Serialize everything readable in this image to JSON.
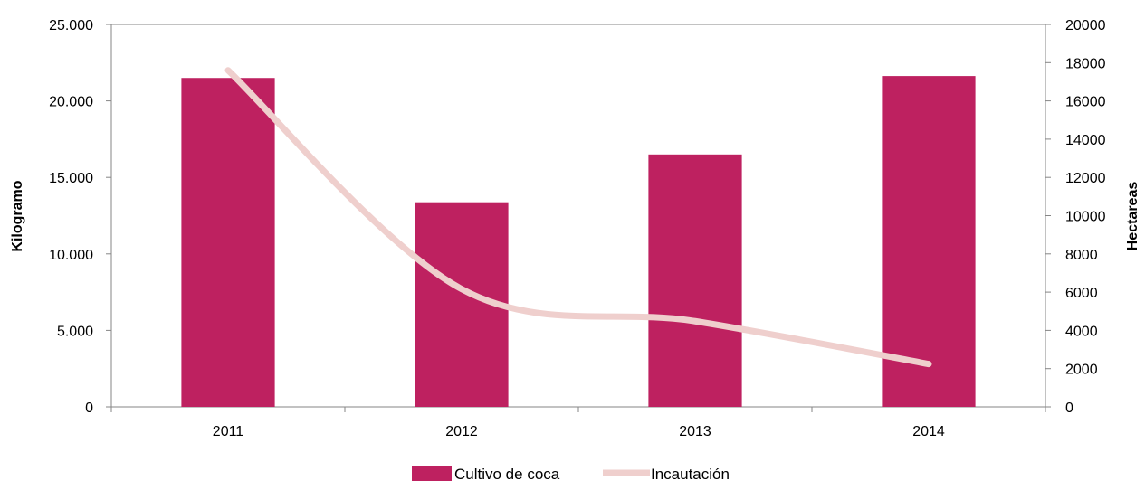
{
  "chart_data": {
    "type": "bar",
    "title": "",
    "categories": [
      "2011",
      "2012",
      "2013",
      "2014"
    ],
    "series": [
      {
        "name": "Cultivo de coca",
        "kind": "bar",
        "axis": "right",
        "values": [
          17200,
          10700,
          13200,
          17300
        ],
        "color": "#BE2160"
      },
      {
        "name": "Incautación",
        "kind": "line",
        "axis": "left",
        "values": [
          22000,
          7700,
          5600,
          2800
        ],
        "color": "#EFCFCD"
      }
    ],
    "left_axis": {
      "label": "Kilogramo",
      "range": [
        0,
        25000
      ],
      "ticks": [
        0,
        5000,
        10000,
        15000,
        20000,
        25000
      ],
      "tick_labels": [
        "0",
        "5.000",
        "10.000",
        "15.000",
        "20.000",
        "25.000"
      ]
    },
    "right_axis": {
      "label": "Hectareas",
      "range": [
        0,
        20000
      ],
      "ticks": [
        0,
        2000,
        4000,
        6000,
        8000,
        10000,
        12000,
        14000,
        16000,
        18000,
        20000
      ],
      "tick_labels": [
        "0",
        "2000",
        "4000",
        "6000",
        "8000",
        "10000",
        "12000",
        "14000",
        "16000",
        "18000",
        "20000"
      ]
    },
    "grid": false,
    "legend_position": "bottom"
  }
}
